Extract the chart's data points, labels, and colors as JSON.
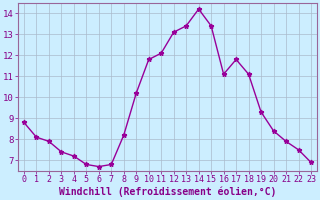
{
  "x": [
    0,
    1,
    2,
    3,
    4,
    5,
    6,
    7,
    8,
    9,
    10,
    11,
    12,
    13,
    14,
    15,
    16,
    17,
    18,
    19,
    20,
    21,
    22,
    23
  ],
  "y": [
    8.8,
    8.1,
    7.9,
    7.4,
    7.2,
    6.8,
    6.7,
    6.8,
    8.2,
    10.2,
    11.8,
    12.1,
    13.1,
    13.4,
    14.2,
    13.4,
    11.1,
    11.8,
    11.1,
    9.3,
    8.4,
    7.9,
    7.5,
    6.9
  ],
  "line_color": "#990099",
  "marker": "*",
  "marker_size": 3.5,
  "bg_color": "#cceeff",
  "grid_color": "#aabbcc",
  "xlabel": "Windchill (Refroidissement éolien,°C)",
  "ylim": [
    6.5,
    14.5
  ],
  "xlim": [
    -0.5,
    23.5
  ],
  "yticks": [
    7,
    8,
    9,
    10,
    11,
    12,
    13,
    14
  ],
  "xticks": [
    0,
    1,
    2,
    3,
    4,
    5,
    6,
    7,
    8,
    9,
    10,
    11,
    12,
    13,
    14,
    15,
    16,
    17,
    18,
    19,
    20,
    21,
    22,
    23
  ],
  "tick_color": "#880088",
  "tick_fontsize": 6.0,
  "label_fontsize": 7.0,
  "label_color": "#880088"
}
